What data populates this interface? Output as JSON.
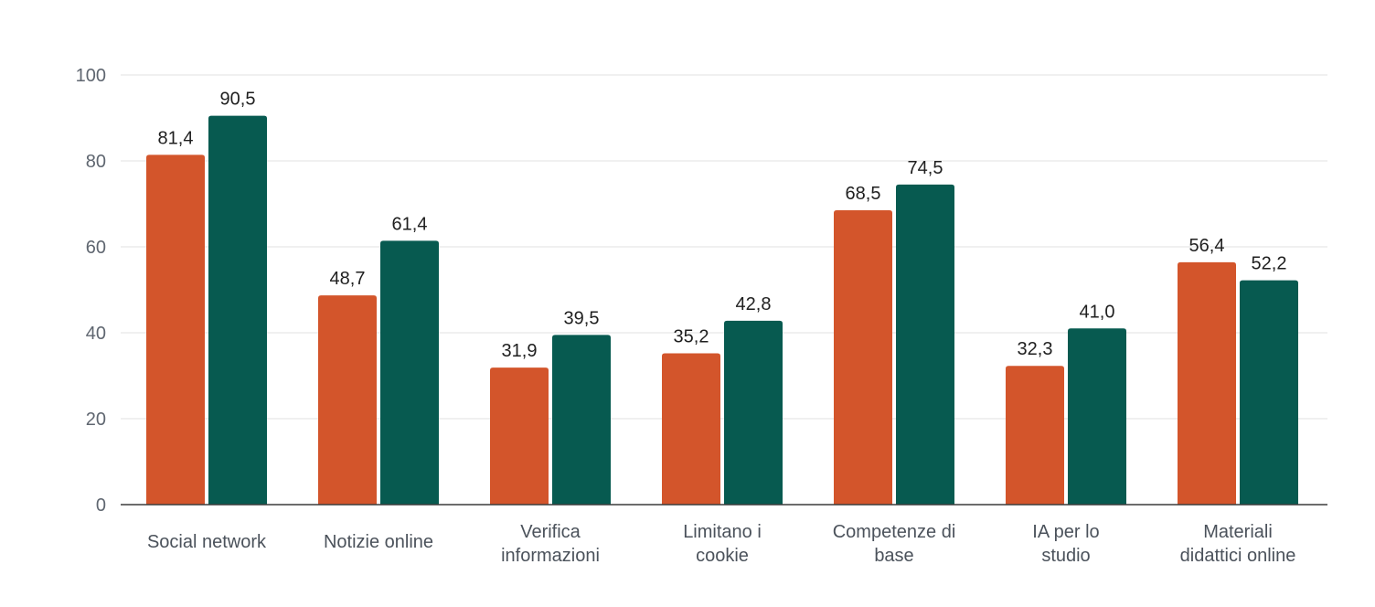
{
  "chart_data": {
    "type": "bar",
    "title": "",
    "xlabel": "",
    "ylabel": "",
    "ylim": [
      0,
      100
    ],
    "yticks": [
      0,
      20,
      40,
      60,
      80,
      100
    ],
    "ytick_labels": [
      "0",
      "20",
      "40",
      "60",
      "80",
      "100"
    ],
    "grid": true,
    "legend": "none",
    "categories": [
      [
        "Social network"
      ],
      [
        "Notizie online"
      ],
      [
        "Verifica",
        "informazioni"
      ],
      [
        "Limitano i",
        "cookie"
      ],
      [
        "Competenze di",
        "base"
      ],
      [
        "IA per lo",
        "studio"
      ],
      [
        "Materiali",
        "didattici online"
      ]
    ],
    "series": [
      {
        "color": "#d3552b",
        "values": [
          81.4,
          48.7,
          31.9,
          35.2,
          68.5,
          32.3,
          56.4
        ],
        "labels": [
          "81,4",
          "48,7",
          "31,9",
          "35,2",
          "68,5",
          "32,3",
          "56,4"
        ]
      },
      {
        "color": "#075a50",
        "values": [
          90.5,
          61.4,
          39.5,
          42.8,
          74.5,
          41.0,
          52.2
        ],
        "labels": [
          "90,5",
          "61,4",
          "39,5",
          "42,8",
          "74,5",
          "41,0",
          "52,2"
        ]
      }
    ]
  }
}
